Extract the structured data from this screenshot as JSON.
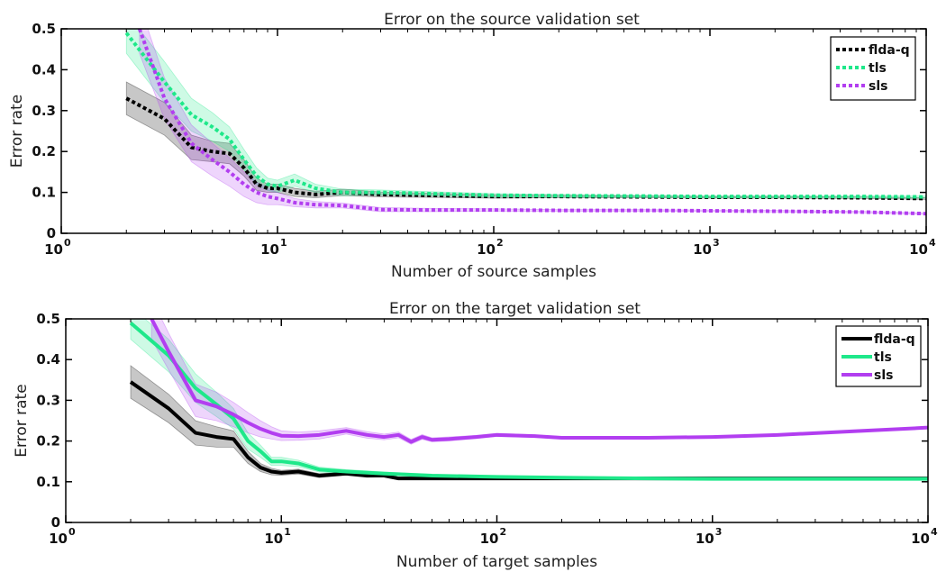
{
  "chart_data": [
    {
      "type": "line",
      "title": "Error on the source validation set",
      "xlabel": "Number of source samples",
      "ylabel": "Error rate",
      "xscale": "log",
      "xlim": [
        1,
        10000
      ],
      "ylim": [
        0,
        0.5
      ],
      "xticks": [
        {
          "base": "10",
          "exp": "0",
          "value": 1
        },
        {
          "base": "10",
          "exp": "1",
          "value": 10
        },
        {
          "base": "10",
          "exp": "2",
          "value": 100
        },
        {
          "base": "10",
          "exp": "3",
          "value": 1000
        },
        {
          "base": "10",
          "exp": "4",
          "value": 10000
        }
      ],
      "yticks": [
        "0",
        "0.1",
        "0.2",
        "0.3",
        "0.4",
        "0.5"
      ],
      "line_style": "dotted",
      "legend_position": "top-right",
      "series": [
        {
          "name": "flda-q",
          "color": "#000000",
          "x": [
            2,
            3,
            4,
            5,
            6,
            7,
            8,
            9,
            10,
            12,
            15,
            20,
            30,
            50,
            100,
            200,
            500,
            1000,
            2000,
            5000,
            10000
          ],
          "values": [
            0.33,
            0.28,
            0.21,
            0.2,
            0.195,
            0.16,
            0.12,
            0.11,
            0.11,
            0.1,
            0.095,
            0.1,
            0.095,
            0.093,
            0.09,
            0.09,
            0.089,
            0.088,
            0.088,
            0.087,
            0.085
          ],
          "band": [
            0.04,
            0.04,
            0.03,
            0.025,
            0.025,
            0.02,
            0.015,
            0.01,
            0.01,
            0.01,
            0.008,
            0.008,
            0.006,
            0.005,
            0.004,
            0.003,
            0.002,
            0.002,
            0.002,
            0.002,
            0.002
          ]
        },
        {
          "name": "tls",
          "color": "#1ee88a",
          "x": [
            2,
            3,
            4,
            5,
            6,
            7,
            8,
            9,
            10,
            12,
            15,
            20,
            30,
            50,
            100,
            200,
            500,
            1000,
            2000,
            5000,
            10000
          ],
          "values": [
            0.49,
            0.37,
            0.29,
            0.26,
            0.23,
            0.18,
            0.14,
            0.12,
            0.115,
            0.13,
            0.11,
            0.1,
            0.1,
            0.097,
            0.093,
            0.092,
            0.091,
            0.09,
            0.09,
            0.09,
            0.089
          ],
          "band": [
            0.05,
            0.05,
            0.04,
            0.035,
            0.03,
            0.025,
            0.02,
            0.015,
            0.015,
            0.015,
            0.01,
            0.008,
            0.006,
            0.005,
            0.004,
            0.003,
            0.002,
            0.002,
            0.002,
            0.002,
            0.002
          ]
        },
        {
          "name": "sls",
          "color": "#b23ef0",
          "x": [
            2.3,
            3,
            4,
            5,
            6,
            7,
            8,
            9,
            10,
            12,
            15,
            20,
            30,
            50,
            100,
            200,
            500,
            1000,
            2000,
            5000,
            10000
          ],
          "values": [
            0.5,
            0.33,
            0.22,
            0.18,
            0.15,
            0.12,
            0.1,
            0.09,
            0.085,
            0.075,
            0.07,
            0.068,
            0.058,
            0.057,
            0.057,
            0.056,
            0.056,
            0.055,
            0.054,
            0.052,
            0.048
          ],
          "band": [
            0.06,
            0.05,
            0.045,
            0.04,
            0.035,
            0.03,
            0.025,
            0.02,
            0.015,
            0.01,
            0.008,
            0.006,
            0.005,
            0.004,
            0.003,
            0.002,
            0.002,
            0.002,
            0.002,
            0.002,
            0.002
          ]
        }
      ]
    },
    {
      "type": "line",
      "title": "Error on the target validation set",
      "xlabel": "Number of target samples",
      "ylabel": "Error rate",
      "xscale": "log",
      "xlim": [
        1,
        10000
      ],
      "ylim": [
        0,
        0.5
      ],
      "xticks": [
        {
          "base": "10",
          "exp": "0",
          "value": 1
        },
        {
          "base": "10",
          "exp": "1",
          "value": 10
        },
        {
          "base": "10",
          "exp": "2",
          "value": 100
        },
        {
          "base": "10",
          "exp": "3",
          "value": 1000
        },
        {
          "base": "10",
          "exp": "4",
          "value": 10000
        }
      ],
      "yticks": [
        "0",
        "0.1",
        "0.2",
        "0.3",
        "0.4",
        "0.5"
      ],
      "line_style": "solid",
      "legend_position": "top-right",
      "series": [
        {
          "name": "flda-q",
          "color": "#000000",
          "x": [
            2,
            3,
            4,
            5,
            6,
            7,
            8,
            9,
            10,
            12,
            15,
            20,
            25,
            30,
            35,
            40,
            50,
            100,
            200,
            500,
            1000,
            2000,
            5000,
            10000
          ],
          "values": [
            0.345,
            0.28,
            0.22,
            0.21,
            0.205,
            0.16,
            0.135,
            0.125,
            0.122,
            0.125,
            0.115,
            0.12,
            0.115,
            0.115,
            0.108,
            0.108,
            0.108,
            0.108,
            0.108,
            0.108,
            0.108,
            0.108,
            0.108,
            0.108
          ],
          "band": [
            0.04,
            0.035,
            0.03,
            0.025,
            0.02,
            0.015,
            0.01,
            0.008,
            0.006,
            0.006,
            0.005,
            0.004,
            0.004,
            0.003,
            0.003,
            0.003,
            0.002,
            0.002,
            0.002,
            0.002,
            0.002,
            0.002,
            0.002,
            0.002
          ]
        },
        {
          "name": "tls",
          "color": "#1ee88a",
          "x": [
            2,
            3,
            4,
            5,
            6,
            7,
            8,
            9,
            10,
            12,
            15,
            20,
            30,
            50,
            100,
            200,
            500,
            1000,
            2000,
            5000,
            10000
          ],
          "values": [
            0.49,
            0.41,
            0.33,
            0.29,
            0.255,
            0.2,
            0.175,
            0.15,
            0.15,
            0.145,
            0.13,
            0.125,
            0.12,
            0.115,
            0.112,
            0.11,
            0.108,
            0.107,
            0.107,
            0.107,
            0.107
          ],
          "band": [
            0.04,
            0.04,
            0.035,
            0.03,
            0.025,
            0.02,
            0.015,
            0.01,
            0.01,
            0.008,
            0.006,
            0.005,
            0.004,
            0.003,
            0.002,
            0.002,
            0.002,
            0.002,
            0.002,
            0.002,
            0.002
          ]
        },
        {
          "name": "sls",
          "color": "#b23ef0",
          "x": [
            2.5,
            3,
            4,
            5,
            6,
            7,
            8,
            9,
            10,
            12,
            15,
            20,
            25,
            30,
            35,
            40,
            45,
            50,
            60,
            80,
            100,
            150,
            200,
            500,
            1000,
            2000,
            5000,
            10000
          ],
          "values": [
            0.5,
            0.42,
            0.3,
            0.285,
            0.265,
            0.245,
            0.23,
            0.22,
            0.213,
            0.212,
            0.215,
            0.225,
            0.215,
            0.21,
            0.215,
            0.198,
            0.21,
            0.203,
            0.205,
            0.21,
            0.215,
            0.212,
            0.208,
            0.208,
            0.21,
            0.215,
            0.225,
            0.233
          ],
          "band": [
            0.05,
            0.045,
            0.04,
            0.035,
            0.03,
            0.025,
            0.02,
            0.015,
            0.012,
            0.01,
            0.01,
            0.008,
            0.008,
            0.007,
            0.007,
            0.006,
            0.006,
            0.005,
            0.005,
            0.004,
            0.004,
            0.003,
            0.003,
            0.002,
            0.002,
            0.002,
            0.002,
            0.002
          ]
        }
      ]
    }
  ]
}
